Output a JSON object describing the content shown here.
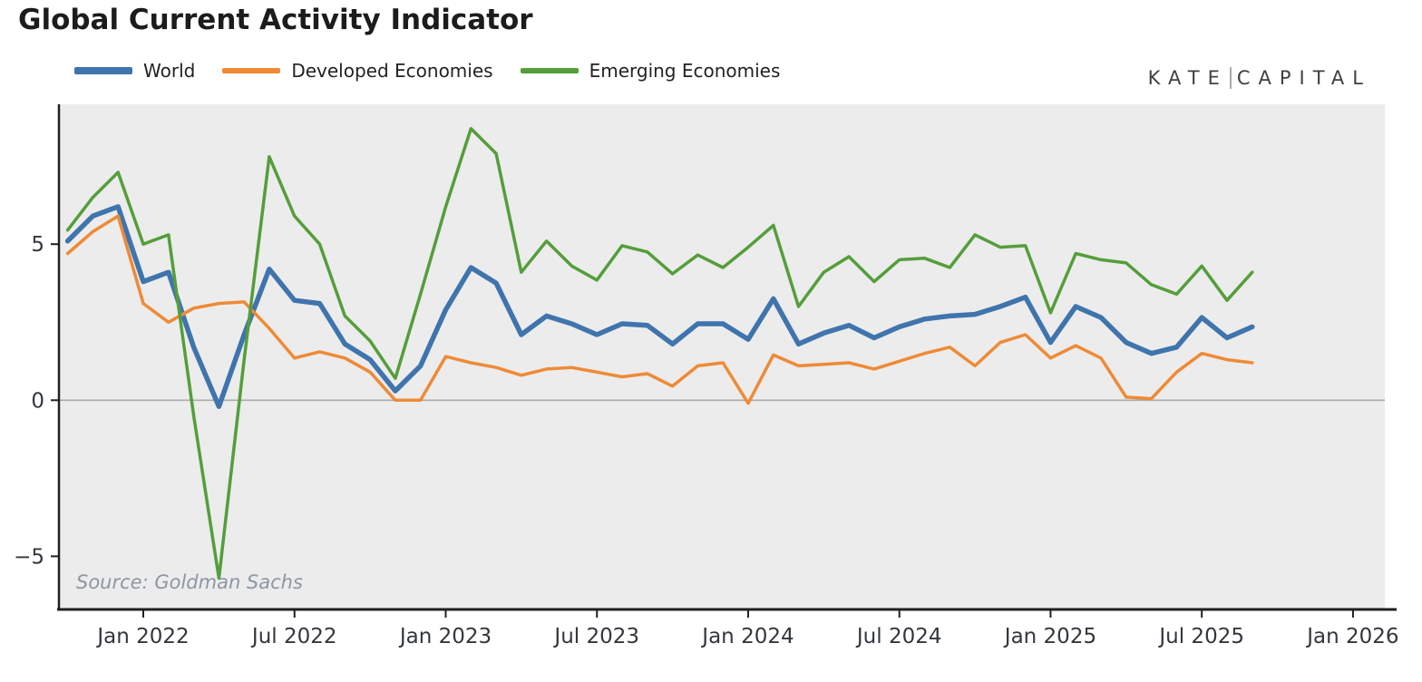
{
  "watermark": {
    "left": "KATE",
    "right": "CAPITAL"
  },
  "chart_data": {
    "type": "line",
    "title": "Global Current Activity Indicator",
    "source": "Source: Goldman Sachs",
    "legend_position": "top-left",
    "grid": "zero-line-only",
    "plot_background": "#ececec",
    "zero_line_color": "#ababab",
    "spine_color": "#202020",
    "y_axis": {
      "ticks": [
        5,
        0,
        -5
      ],
      "tick_labels": [
        "5",
        "0",
        "−5"
      ],
      "range": [
        -6.7,
        9.5
      ]
    },
    "x_axis": {
      "tick_labels": [
        "Jan 2022",
        "Jul 2022",
        "Jan 2023",
        "Jul 2023",
        "Jan 2024",
        "Jul 2024",
        "Jan 2025",
        "Jul 2025",
        "Jan 2026"
      ],
      "tick_step_months": 6,
      "first_point_offset_months": -3,
      "range_months_rel_jan2022": [
        -0.4,
        52.3
      ]
    },
    "x_months": [
      "Oct 2021",
      "Nov 2021",
      "Dec 2021",
      "Jan 2022",
      "Feb 2022",
      "Mar 2022",
      "Apr 2022",
      "May 2022",
      "Jun 2022",
      "Jul 2022",
      "Aug 2022",
      "Sep 2022",
      "Oct 2022",
      "Nov 2022",
      "Dec 2022",
      "Jan 2023",
      "Feb 2023",
      "Mar 2023",
      "Apr 2023",
      "May 2023",
      "Jun 2023",
      "Jul 2023",
      "Aug 2023",
      "Sep 2023",
      "Oct 2023",
      "Nov 2023",
      "Dec 2023",
      "Jan 2024",
      "Feb 2024",
      "Mar 2024",
      "Apr 2024",
      "May 2024",
      "Jun 2024",
      "Jul 2024",
      "Aug 2024",
      "Sep 2024",
      "Oct 2024",
      "Nov 2024",
      "Dec 2024",
      "Jan 2025",
      "Feb 2025",
      "Mar 2025",
      "Apr 2025",
      "May 2025",
      "Jun 2025",
      "Jul 2025",
      "Aug 2025",
      "Sep 2025"
    ],
    "series": [
      {
        "name": "World",
        "color": "#3f74ad",
        "line_width": 5.5,
        "values": [
          5.1,
          5.9,
          6.2,
          3.8,
          4.1,
          1.7,
          -0.2,
          2.1,
          4.2,
          3.2,
          3.1,
          1.8,
          1.3,
          0.3,
          1.1,
          2.9,
          4.25,
          3.75,
          2.1,
          2.7,
          2.45,
          2.1,
          2.45,
          2.4,
          1.8,
          2.45,
          2.45,
          1.95,
          3.25,
          1.8,
          2.15,
          2.4,
          2.0,
          2.35,
          2.6,
          2.7,
          2.75,
          3.0,
          3.3,
          1.85,
          3.0,
          2.65,
          1.85,
          1.5,
          1.7,
          2.65,
          2.0,
          2.35
        ]
      },
      {
        "name": "Developed Economies",
        "color": "#ef8a36",
        "line_width": 3.5,
        "values": [
          4.7,
          5.4,
          5.9,
          3.1,
          2.5,
          2.95,
          3.1,
          3.15,
          2.3,
          1.35,
          1.55,
          1.35,
          0.9,
          0.0,
          0.0,
          1.4,
          1.2,
          1.05,
          0.8,
          1.0,
          1.05,
          0.9,
          0.75,
          0.85,
          0.45,
          1.1,
          1.2,
          -0.1,
          1.45,
          1.1,
          1.15,
          1.2,
          1.0,
          1.25,
          1.5,
          1.7,
          1.1,
          1.85,
          2.1,
          1.35,
          1.75,
          1.35,
          0.1,
          0.05,
          0.9,
          1.5,
          1.3,
          1.2
        ]
      },
      {
        "name": "Emerging Economies",
        "color": "#549e3b",
        "line_width": 3.5,
        "values": [
          5.45,
          6.5,
          7.3,
          5.0,
          5.3,
          -0.5,
          -5.7,
          1.3,
          7.8,
          5.9,
          5.0,
          2.7,
          1.9,
          0.7,
          3.4,
          6.2,
          8.7,
          7.9,
          4.1,
          5.1,
          4.3,
          3.85,
          4.95,
          4.75,
          4.05,
          4.65,
          4.25,
          4.9,
          5.6,
          3.0,
          4.1,
          4.6,
          3.8,
          4.5,
          4.55,
          4.25,
          5.3,
          4.9,
          4.95,
          2.8,
          4.7,
          4.5,
          4.4,
          3.7,
          3.4,
          4.3,
          3.2,
          4.1
        ]
      }
    ]
  }
}
